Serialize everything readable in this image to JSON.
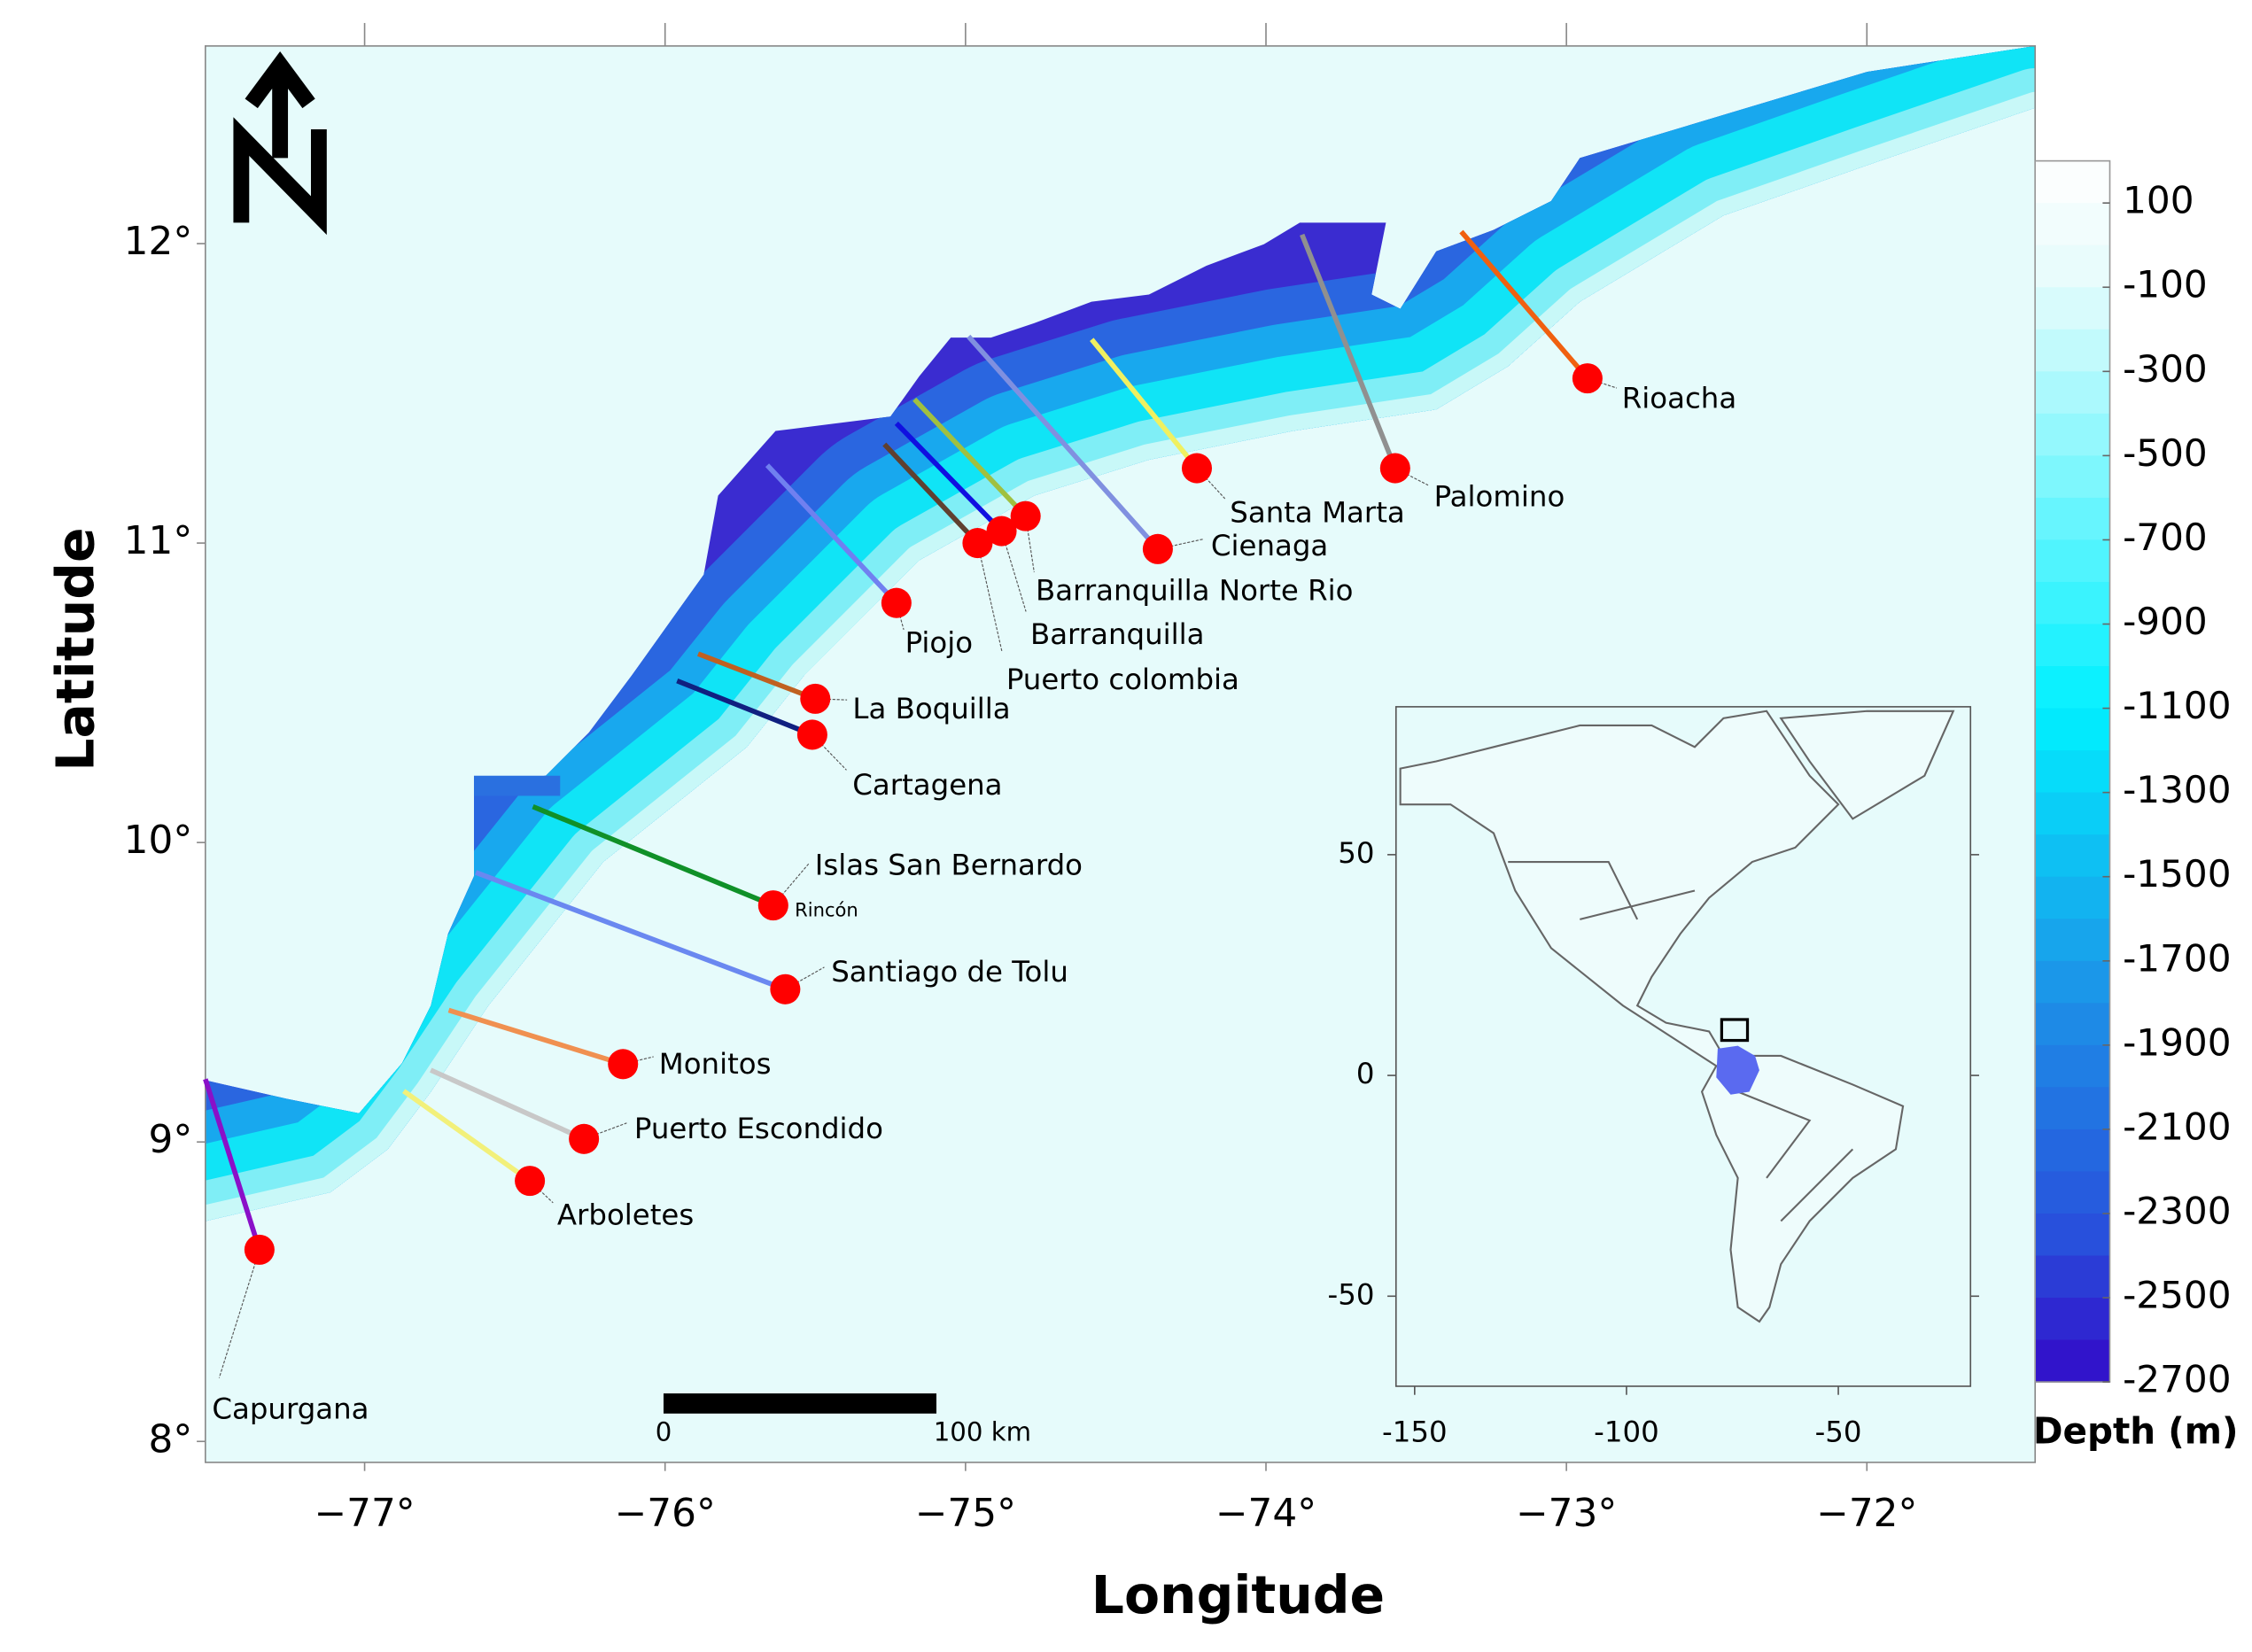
{
  "map": {
    "type": "map",
    "xlabel": "Longitude",
    "ylabel": "Latitude",
    "xlim": [
      -77.53,
      -71.44
    ],
    "ylim": [
      7.93,
      12.66
    ],
    "xticks": [
      {
        "value": -77,
        "label": "−77°"
      },
      {
        "value": -76,
        "label": "−76°"
      },
      {
        "value": -75,
        "label": "−75°"
      },
      {
        "value": -74,
        "label": "−74°"
      },
      {
        "value": -73,
        "label": "−73°"
      },
      {
        "value": -72,
        "label": "−72°"
      }
    ],
    "yticks": [
      {
        "value": 8,
        "label": "8°"
      },
      {
        "value": 9,
        "label": "9°"
      },
      {
        "value": 10,
        "label": "10°"
      },
      {
        "value": 11,
        "label": "11°"
      },
      {
        "value": 12,
        "label": "12°"
      }
    ],
    "station_color": "#ff0000",
    "stations": [
      {
        "name": "Capurgana",
        "lon": -77.35,
        "lat": 8.64,
        "transect_lon": -77.53,
        "transect_lat": 9.21,
        "color": "#8a10c8"
      },
      {
        "name": "Arboletes",
        "lon": -76.45,
        "lat": 8.87,
        "transect_lon": -76.87,
        "transect_lat": 9.17,
        "color": "#f2f07a"
      },
      {
        "name": "Puerto Escondido",
        "lon": -76.27,
        "lat": 9.01,
        "transect_lon": -76.78,
        "transect_lat": 9.24,
        "color": "#c8c8c8"
      },
      {
        "name": "Monitos",
        "lon": -76.14,
        "lat": 9.26,
        "transect_lon": -76.72,
        "transect_lat": 9.44,
        "color": "#f09050"
      },
      {
        "name": "Santiago de Tolu",
        "lon": -75.6,
        "lat": 9.51,
        "transect_lon": -76.63,
        "transect_lat": 9.9,
        "color": "#6a88f0"
      },
      {
        "name": "Islas San Bernardo",
        "note": "Rincón",
        "lon": -75.64,
        "lat": 9.79,
        "transect_lon": -76.44,
        "transect_lat": 10.12,
        "color": "#109028"
      },
      {
        "name": "Cartagena",
        "lon": -75.51,
        "lat": 10.36,
        "transect_lon": -75.96,
        "transect_lat": 10.54,
        "color": "#102080"
      },
      {
        "name": "La Boquilla",
        "lon": -75.5,
        "lat": 10.48,
        "transect_lon": -75.89,
        "transect_lat": 10.63,
        "color": "#c06020"
      },
      {
        "name": "Piojo",
        "lon": -75.23,
        "lat": 10.8,
        "transect_lon": -75.66,
        "transect_lat": 11.26,
        "color": "#7080f0"
      },
      {
        "name": "Puerto colombia",
        "lon": -74.96,
        "lat": 11.0,
        "transect_lon": -75.27,
        "transect_lat": 11.33,
        "color": "#604030"
      },
      {
        "name": "Barranquilla",
        "lon": -74.88,
        "lat": 11.04,
        "transect_lon": -75.23,
        "transect_lat": 11.4,
        "color": "#1010e0"
      },
      {
        "name": "Barranquilla Norte Rio",
        "lon": -74.8,
        "lat": 11.09,
        "transect_lon": -75.17,
        "transect_lat": 11.48,
        "color": "#a0c040"
      },
      {
        "name": "Cienaga",
        "lon": -74.36,
        "lat": 10.98,
        "transect_lon": -74.99,
        "transect_lat": 11.69,
        "color": "#8090e0"
      },
      {
        "name": "Santa Marta",
        "lon": -74.23,
        "lat": 11.25,
        "transect_lon": -74.58,
        "transect_lat": 11.68,
        "color": "#f0f060"
      },
      {
        "name": "Palomino",
        "lon": -73.57,
        "lat": 11.25,
        "transect_lon": -73.88,
        "transect_lat": 12.03,
        "color": "#909090"
      },
      {
        "name": "Rioacha",
        "lon": -72.93,
        "lat": 11.55,
        "transect_lon": -73.35,
        "transect_lat": 12.04,
        "color": "#f06010"
      }
    ]
  },
  "scale_bar": {
    "labels": [
      "0",
      "100 km"
    ]
  },
  "colorbar": {
    "label": "Depth (m)",
    "clim": [
      -2700,
      200
    ],
    "ticks": [
      100,
      -100,
      -300,
      -500,
      -700,
      -900,
      -1100,
      -1300,
      -1500,
      -1700,
      -1900,
      -2100,
      -2300,
      -2500,
      -2700
    ]
  },
  "inset": {
    "xlim": [
      -154.4,
      -18.8
    ],
    "ylim": [
      -70.4,
      83.5
    ],
    "xticks": [
      -150,
      -100,
      -50
    ],
    "yticks": [
      50,
      0,
      -50
    ]
  }
}
